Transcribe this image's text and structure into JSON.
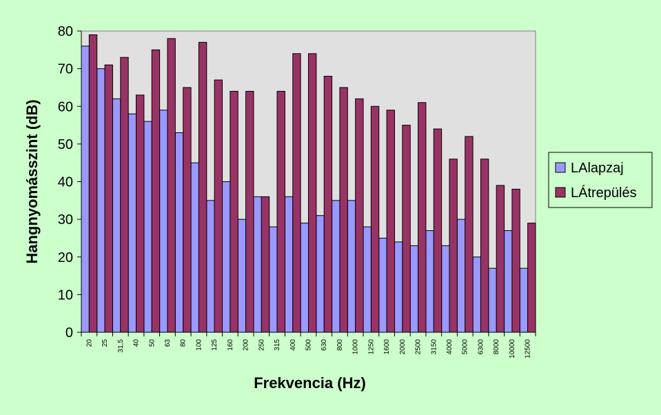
{
  "chart_data": {
    "type": "bar",
    "title": "",
    "xlabel": "Frekvencia (Hz)",
    "ylabel": "Hangnyomásszint (dB)",
    "ylim": [
      0,
      80
    ],
    "yticks": [
      0,
      10,
      20,
      30,
      40,
      50,
      60,
      70,
      80
    ],
    "grid": false,
    "legend_position": "right",
    "categories": [
      "20",
      "25",
      "31,5",
      "40",
      "50",
      "63",
      "80",
      "100",
      "125",
      "160",
      "200",
      "250",
      "315",
      "400",
      "500",
      "630",
      "800",
      "1000",
      "1250",
      "1600",
      "2000",
      "2500",
      "3150",
      "4000",
      "5000",
      "6300",
      "8000",
      "10000",
      "12500"
    ],
    "series": [
      {
        "name": "LAlapzaj",
        "color": "#9999ff",
        "values": [
          76,
          70,
          62,
          58,
          56,
          59,
          53,
          45,
          35,
          40,
          30,
          36,
          28,
          36,
          29,
          31,
          35,
          35,
          28,
          25,
          24,
          23,
          27,
          23,
          30,
          20,
          17,
          27,
          17
        ]
      },
      {
        "name": "LÁtrepülés",
        "color": "#993366",
        "values": [
          79,
          71,
          73,
          63,
          75,
          78,
          65,
          77,
          67,
          64,
          64,
          36,
          64,
          74,
          74,
          68,
          65,
          62,
          60,
          59,
          55,
          61,
          54,
          46,
          52,
          46,
          39,
          38,
          29
        ]
      }
    ],
    "plot_background": "#e0e0e0"
  }
}
